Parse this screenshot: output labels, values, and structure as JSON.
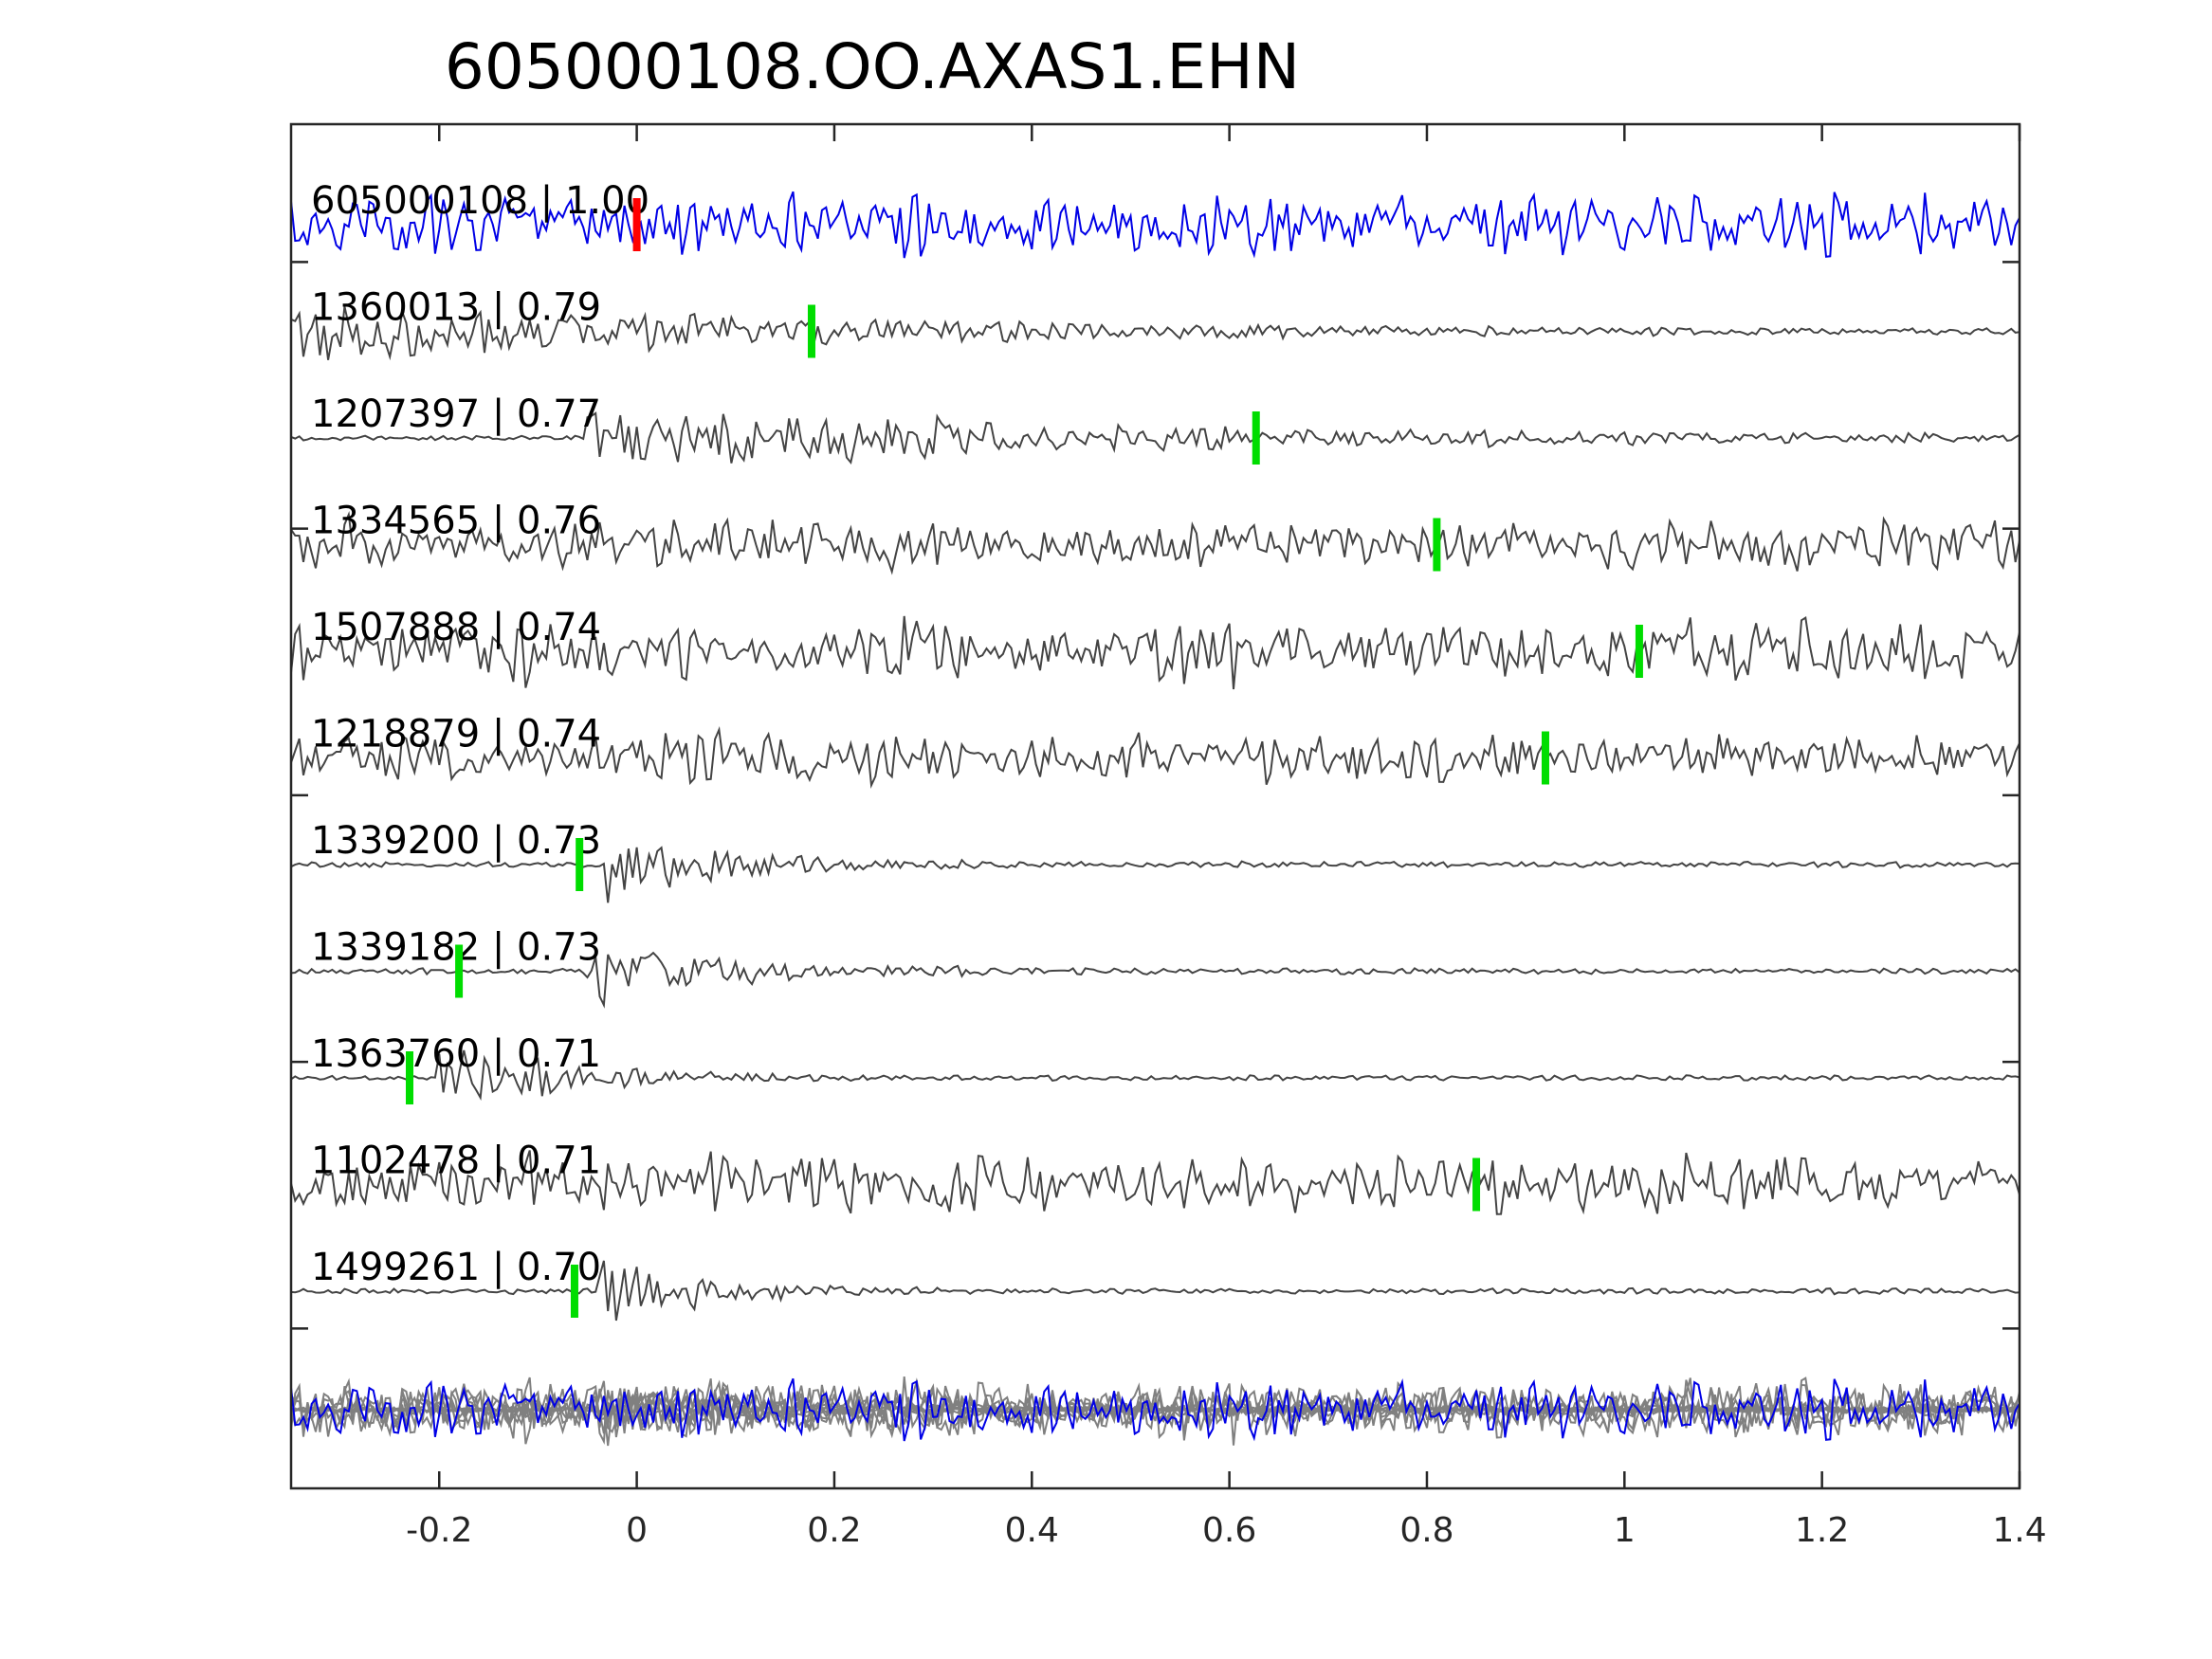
{
  "chart_data": {
    "type": "line",
    "title": "605000108.OO.AXAS1.EHN",
    "xlabel": "",
    "ylabel": "",
    "xlim": [
      -0.35,
      1.4
    ],
    "x_ticks": [
      -0.2,
      0,
      0.2,
      0.4,
      0.6,
      0.8,
      1,
      1.2,
      1.4
    ],
    "x_tick_labels": [
      "-0.2",
      "0",
      "0.2",
      "0.4",
      "0.6",
      "0.8",
      "1",
      "1.2",
      "1.4"
    ],
    "grid": false,
    "colors": {
      "reference": "#0000e6",
      "trace": "#444444",
      "overlay": "#808080",
      "reference_pick": "#ff0000",
      "template_pick": "#00dd00",
      "axes": "#262626"
    },
    "traces": [
      {
        "label": "605000108 | 1.00",
        "pick": 0.0,
        "kind": "reference",
        "onset": -0.35,
        "amp": 1.0,
        "decay": 0
      },
      {
        "label": "1360013 | 0.79",
        "pick": 0.177,
        "kind": "template",
        "onset": -0.35,
        "amp": 1.0,
        "decay": 0.45
      },
      {
        "label": "1207397 | 0.77",
        "pick": 0.627,
        "kind": "template",
        "onset": -0.05,
        "amp": 1.0,
        "decay": 0.5
      },
      {
        "label": "1334565 | 0.76",
        "pick": 0.81,
        "kind": "template",
        "onset": -0.35,
        "amp": 0.85,
        "decay": 0
      },
      {
        "label": "1507888 | 0.74",
        "pick": 1.015,
        "kind": "template",
        "onset": -0.35,
        "amp": 1.0,
        "decay": 0
      },
      {
        "label": "1218879 | 0.74",
        "pick": 0.92,
        "kind": "template",
        "onset": -0.35,
        "amp": 0.8,
        "decay": 0
      },
      {
        "label": "1339200 | 0.73",
        "pick": -0.058,
        "kind": "template",
        "onset": -0.03,
        "amp": 1.1,
        "decay": 0.12
      },
      {
        "label": "1339182 | 0.73",
        "pick": -0.18,
        "kind": "template",
        "onset": -0.05,
        "amp": 1.1,
        "decay": 0.13
      },
      {
        "label": "1363760 | 0.71",
        "pick": -0.23,
        "kind": "template",
        "onset": -0.2,
        "amp": 1.0,
        "decay": 0.12
      },
      {
        "label": "1102478 | 0.71",
        "pick": 0.85,
        "kind": "template",
        "onset": -0.35,
        "amp": 1.0,
        "decay": 0
      },
      {
        "label": "1499261 | 0.70",
        "pick": -0.063,
        "kind": "template",
        "onset": -0.04,
        "amp": 1.1,
        "decay": 0.1
      }
    ]
  }
}
